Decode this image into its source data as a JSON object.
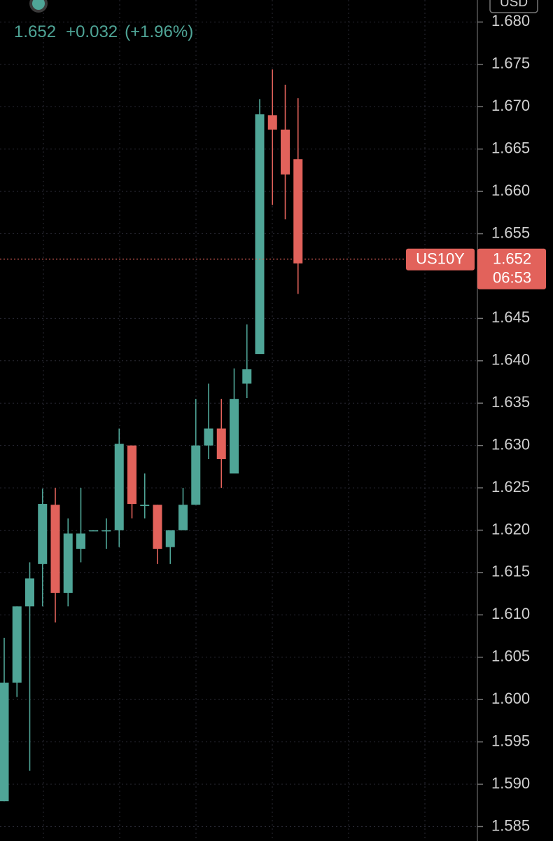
{
  "chart_data": {
    "type": "candlestick",
    "symbol": "US10Y",
    "currency": "USD",
    "last_price": 1.652,
    "change": "+0.032",
    "change_pct": "(+1.96%)",
    "countdown": "06:53",
    "categories": [
      null,
      null,
      null,
      null,
      null,
      null,
      null,
      null,
      null,
      null,
      null,
      null,
      null,
      null,
      null,
      null,
      null,
      null,
      null,
      null,
      null,
      null,
      null,
      null
    ],
    "open": [
      1.588,
      1.602,
      1.611,
      1.616,
      1.623,
      1.6126,
      1.6178,
      1.62,
      1.62,
      1.62,
      1.63,
      1.623,
      1.623,
      1.618,
      1.62,
      1.623,
      1.63,
      1.632,
      1.6267,
      1.6373,
      1.6408,
      1.669,
      1.6673,
      1.6638
    ],
    "high": [
      1.6073,
      1.611,
      1.6162,
      1.6249,
      1.625,
      1.6214,
      1.625,
      1.62,
      1.6214,
      1.632,
      1.63,
      1.6267,
      1.623,
      1.62,
      1.625,
      1.6355,
      1.6373,
      1.6355,
      1.6391,
      1.6443,
      1.6709,
      1.6744,
      1.6726,
      1.671
    ],
    "low": [
      1.588,
      1.6003,
      1.5916,
      1.611,
      1.6091,
      1.611,
      1.6162,
      1.62,
      1.6178,
      1.618,
      1.6214,
      1.6214,
      1.616,
      1.616,
      1.62,
      1.623,
      1.6284,
      1.625,
      1.6267,
      1.6356,
      1.641,
      1.6584,
      1.6567,
      1.6479
    ],
    "close": [
      1.602,
      1.611,
      1.6143,
      1.6231,
      1.6126,
      1.6196,
      1.6196,
      1.62,
      1.62,
      1.6302,
      1.6231,
      1.623,
      1.6178,
      1.62,
      1.623,
      1.63,
      1.632,
      1.6284,
      1.6355,
      1.639,
      1.6691,
      1.6673,
      1.662,
      1.6515
    ],
    "up_color": "#4fa597",
    "down_color": "#e2625b",
    "ylim": [
      1.5833,
      1.6826
    ],
    "yticks": [
      1.585,
      {
        "value": 1.59,
        "label": "1.590"
      },
      1.595,
      {
        "value": 1.6,
        "label": "1.600"
      },
      1.605,
      {
        "value": 1.61,
        "label": "1.610"
      },
      1.615,
      {
        "value": 1.62,
        "label": "1.620"
      },
      1.625,
      {
        "value": 1.63,
        "label": "1.630"
      },
      1.635,
      {
        "value": 1.64,
        "label": "1.640"
      },
      1.645,
      1.655,
      {
        "value": 1.66,
        "label": "1.660"
      },
      1.665,
      {
        "value": 1.67,
        "label": "1.670"
      },
      1.675,
      {
        "value": 1.68,
        "label": "1.680"
      }
    ],
    "grid": true
  }
}
